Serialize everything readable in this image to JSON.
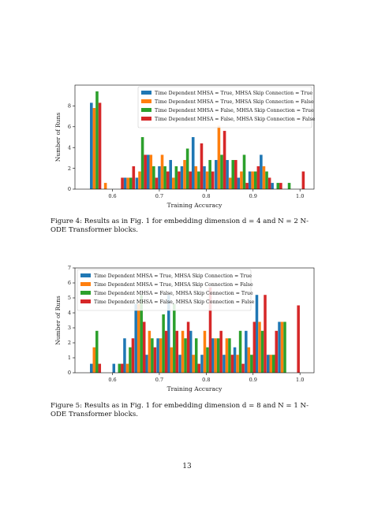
{
  "figure4": {
    "caption": "Figure 4: Results as in Fig. 1 for embedding dimension d = 4 and N = 2 N-ODE Transformer blocks."
  },
  "figure5": {
    "caption": "Figure 5: Results as in Fig. 1 for embedding dimension d = 8 and N = 1 N-ODE Transformer blocks."
  },
  "page_number": "13",
  "colors": [
    "#1f77b4",
    "#ff7f0e",
    "#2ca02c",
    "#d62728"
  ],
  "chart_data": [
    {
      "type": "bar",
      "xlabel": "Training Accuracy",
      "ylabel": "Number of Runs",
      "xlim": [
        0.52,
        1.03
      ],
      "ylim": [
        0,
        10
      ],
      "xticks": [
        0.6,
        0.7,
        0.8,
        0.9,
        1.0
      ],
      "xtick_labels": [
        "0.6",
        "0.7",
        "0.8",
        "0.9",
        "1.0"
      ],
      "yticks": [
        0,
        2,
        4,
        6,
        8
      ],
      "legend_position": "top-right",
      "bin_width": 0.0241,
      "bin_edges_start": [
        0.552,
        0.576,
        0.6,
        0.624,
        0.649,
        0.673,
        0.697,
        0.721,
        0.745,
        0.769,
        0.793,
        0.818,
        0.842,
        0.866,
        0.89,
        0.914,
        0.938,
        0.962,
        0.986
      ],
      "series": [
        {
          "name": "Time Dependent MHSA = True, MHSA Skip Connection = True",
          "values": [
            8.3,
            0,
            0,
            1.1,
            1.1,
            3.3,
            2.2,
            2.8,
            2.2,
            5.0,
            2.2,
            2.8,
            2.8,
            1.1,
            1.7,
            3.3,
            0.6,
            0,
            0
          ]
        },
        {
          "name": "Time Dependent MHSA = True, MHSA Skip Connection = False",
          "values": [
            7.8,
            0.6,
            0,
            1.1,
            1.7,
            3.3,
            3.3,
            1.1,
            2.8,
            2.2,
            1.7,
            6.1,
            1.1,
            1.7,
            1.7,
            2.2,
            0,
            0,
            0
          ]
        },
        {
          "name": "Time Dependent MHSA = False, MHSA Skip Connection = True",
          "values": [
            9.4,
            0,
            0,
            1.1,
            5.0,
            2.2,
            2.2,
            2.2,
            3.9,
            1.7,
            2.8,
            3.3,
            2.8,
            3.3,
            1.7,
            1.7,
            0.6,
            0.6,
            0
          ]
        },
        {
          "name": "Time Dependent MHSA = False, MHSA Skip Connection = False",
          "values": [
            8.3,
            0,
            1.1,
            2.2,
            3.3,
            1.1,
            1.7,
            1.7,
            1.7,
            4.4,
            1.7,
            5.6,
            2.8,
            0.6,
            2.2,
            1.1,
            0.6,
            0,
            1.7
          ]
        }
      ]
    },
    {
      "type": "bar",
      "xlabel": "Training Accuracy",
      "ylabel": "Number of Runs",
      "xlim": [
        0.52,
        1.03
      ],
      "ylim": [
        0,
        7
      ],
      "xticks": [
        0.6,
        0.7,
        0.8,
        0.9,
        1.0
      ],
      "xtick_labels": [
        "0.6",
        "0.7",
        "0.8",
        "0.9",
        "1.0"
      ],
      "yticks": [
        0,
        1,
        2,
        3,
        4,
        5,
        6,
        7
      ],
      "legend_position": "top-left",
      "bin_width": 0.0236,
      "bin_edges_start": [
        0.552,
        0.576,
        0.6,
        0.623,
        0.647,
        0.67,
        0.694,
        0.717,
        0.741,
        0.764,
        0.788,
        0.811,
        0.835,
        0.858,
        0.882,
        0.905,
        0.929,
        0.953,
        0.976
      ],
      "series": [
        {
          "name": "Time Dependent MHSA = True, MHSA Skip Connection = True",
          "values": [
            0.6,
            0,
            0.6,
            2.3,
            4.6,
            1.2,
            2.3,
            5.2,
            1.2,
            2.8,
            1.2,
            2.3,
            1.2,
            1.7,
            2.8,
            5.2,
            1.2,
            3.4,
            0
          ]
        },
        {
          "name": "Time Dependent MHSA = True, MHSA Skip Connection = False",
          "values": [
            1.7,
            0,
            0,
            0.6,
            4.6,
            2.8,
            2.3,
            1.7,
            2.8,
            1.2,
            2.8,
            2.3,
            2.3,
            1.2,
            1.7,
            3.4,
            1.2,
            3.4,
            0
          ]
        },
        {
          "name": "Time Dependent MHSA = False, MHSA Skip Connection = True",
          "values": [
            2.8,
            0,
            0.6,
            1.7,
            5.2,
            2.3,
            3.9,
            4.6,
            2.3,
            2.3,
            1.7,
            2.3,
            2.3,
            2.8,
            1.2,
            2.8,
            1.2,
            3.4,
            0
          ]
        },
        {
          "name": "Time Dependent MHSA = False, MHSA Skip Connection = False",
          "values": [
            0.6,
            0,
            0.6,
            2.3,
            3.4,
            1.7,
            2.8,
            2.8,
            3.4,
            0.6,
            5.7,
            2.8,
            1.2,
            0.6,
            3.4,
            5.2,
            2.8,
            0,
            4.5
          ]
        }
      ]
    }
  ]
}
